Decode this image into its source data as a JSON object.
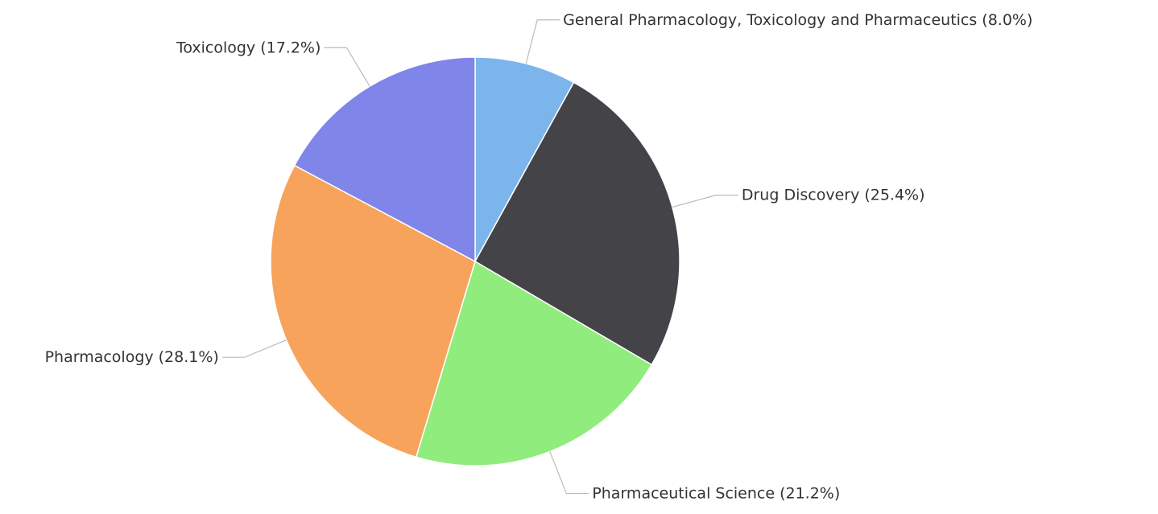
{
  "chart_data": {
    "type": "pie",
    "categories": [
      "General Pharmacology, Toxicology and Pharmaceutics",
      "Drug Discovery",
      "Pharmaceutical Science",
      "Pharmacology",
      "Toxicology"
    ],
    "values": [
      8.0,
      25.4,
      21.2,
      28.1,
      17.2
    ],
    "value_labels": [
      "(8.0%)",
      "(25.4%)",
      "(21.2%)",
      "(28.1%)",
      "(17.2%)"
    ],
    "colors": [
      "#7cb5ec",
      "#434348",
      "#90ed7d",
      "#f7a35c",
      "#8085e9"
    ]
  }
}
